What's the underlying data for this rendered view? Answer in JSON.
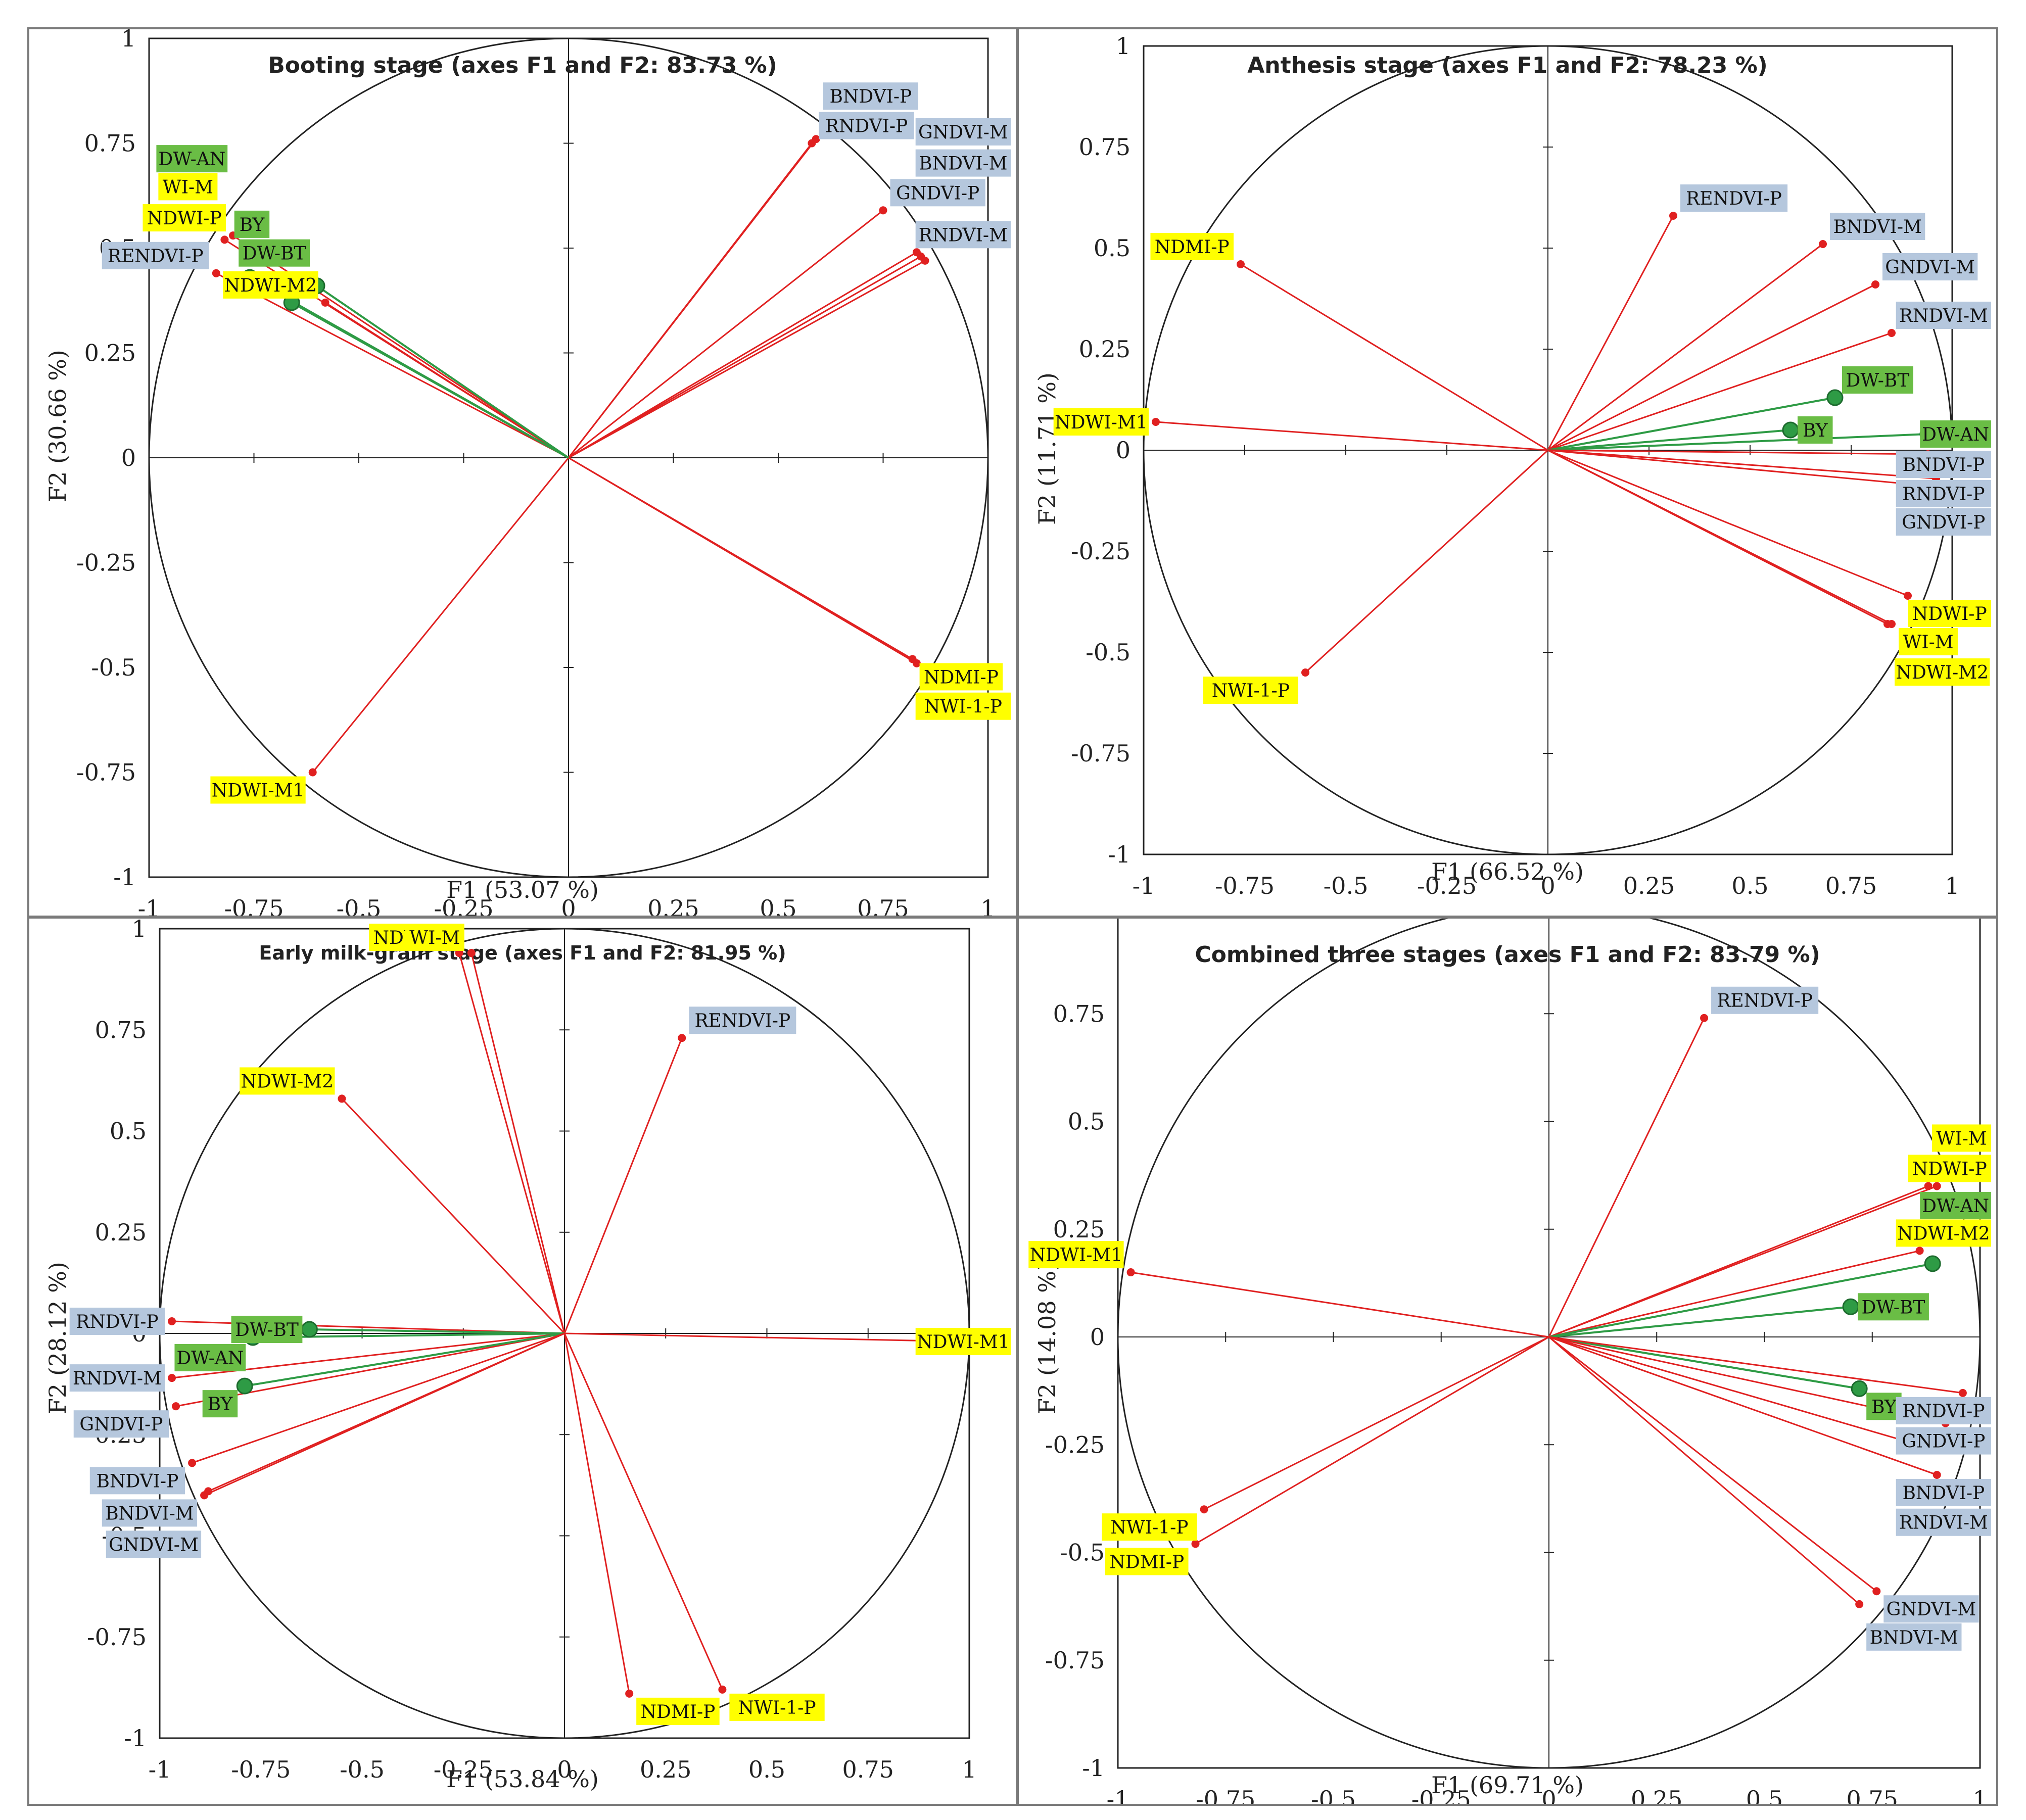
{
  "figure": {
    "colors": {
      "vector": "#e02020",
      "point": "#e02020",
      "dw_point": "#2e9b45",
      "circle": "#222222",
      "label_blue": "#b5c7dd",
      "label_yellow": "#ffff00",
      "label_green": "#6abd45"
    }
  },
  "chart_data": [
    {
      "type": "scatter",
      "title": "Booting stage (axes F1 and F2: 83.73 %)",
      "xlabel": "F1 (53.07 %)",
      "ylabel": "F2 (30.66 %)",
      "xlim": [
        -1,
        1
      ],
      "ylim": [
        -1,
        1
      ],
      "ticks": [
        "-1",
        "-0.75",
        "-0.5",
        "-0.25",
        "0",
        "0.25",
        "0.5",
        "0.75",
        "1"
      ],
      "points": [
        {
          "name": "RNDVI-P",
          "x": 0.58,
          "y": 0.75,
          "group": "blue"
        },
        {
          "name": "BNDVI-P",
          "x": 0.59,
          "y": 0.76,
          "group": "blue"
        },
        {
          "name": "GNDVI-P",
          "x": 0.75,
          "y": 0.59,
          "group": "blue"
        },
        {
          "name": "RNDVI-M",
          "x": 0.83,
          "y": 0.49,
          "group": "blue"
        },
        {
          "name": "BNDVI-M",
          "x": 0.84,
          "y": 0.48,
          "group": "blue"
        },
        {
          "name": "GNDVI-M",
          "x": 0.85,
          "y": 0.47,
          "group": "blue"
        },
        {
          "name": "NDMI-P",
          "x": 0.82,
          "y": -0.48,
          "group": "yellow"
        },
        {
          "name": "NWI-1-P",
          "x": 0.83,
          "y": -0.49,
          "group": "yellow"
        },
        {
          "name": "NDWI-M1",
          "x": -0.61,
          "y": -0.75,
          "group": "yellow"
        },
        {
          "name": "NDWI-P",
          "x": -0.8,
          "y": 0.53,
          "group": "yellow"
        },
        {
          "name": "WI-M",
          "x": -0.82,
          "y": 0.52,
          "group": "yellow"
        },
        {
          "name": "NDWI-M2",
          "x": -0.58,
          "y": 0.37,
          "group": "yellow"
        },
        {
          "name": "RENDVI-P",
          "x": -0.84,
          "y": 0.44,
          "group": "blue"
        },
        {
          "name": "DW-AN",
          "x": -0.76,
          "y": 0.43,
          "group": "green"
        },
        {
          "name": "DW-BT",
          "x": -0.6,
          "y": 0.41,
          "group": "green"
        },
        {
          "name": "BY",
          "x": -0.66,
          "y": 0.37,
          "group": "green"
        }
      ]
    },
    {
      "type": "scatter",
      "title": "Anthesis stage (axes F1 and F2: 78.23 %)",
      "xlabel": "F1 (66.52 %)",
      "ylabel": "F2 (11.71 %)",
      "xlim": [
        -1,
        1
      ],
      "ylim": [
        -1,
        1
      ],
      "ticks": [
        "-1",
        "-0.75",
        "-0.5",
        "-0.25",
        "0",
        "0.25",
        "0.5",
        "0.75",
        "1"
      ],
      "points": [
        {
          "name": "RENDVI-P",
          "x": 0.31,
          "y": 0.58,
          "group": "blue"
        },
        {
          "name": "BNDVI-M",
          "x": 0.68,
          "y": 0.51,
          "group": "blue"
        },
        {
          "name": "GNDVI-M",
          "x": 0.81,
          "y": 0.41,
          "group": "blue"
        },
        {
          "name": "RNDVI-M",
          "x": 0.85,
          "y": 0.29,
          "group": "blue"
        },
        {
          "name": "BY",
          "x": 0.6,
          "y": 0.05,
          "group": "green"
        },
        {
          "name": "DW-BT",
          "x": 0.71,
          "y": 0.13,
          "group": "green"
        },
        {
          "name": "DW-AN",
          "x": 0.94,
          "y": 0.04,
          "group": "green"
        },
        {
          "name": "BNDVI-P",
          "x": 0.94,
          "y": -0.01,
          "group": "blue"
        },
        {
          "name": "RNDVI-P",
          "x": 0.96,
          "y": -0.07,
          "group": "blue"
        },
        {
          "name": "GNDVI-P",
          "x": 0.96,
          "y": -0.09,
          "group": "blue"
        },
        {
          "name": "NDWI-P",
          "x": 0.89,
          "y": -0.36,
          "group": "yellow"
        },
        {
          "name": "WI-M",
          "x": 0.85,
          "y": -0.43,
          "group": "yellow"
        },
        {
          "name": "NDWI-M2",
          "x": 0.84,
          "y": -0.43,
          "group": "yellow"
        },
        {
          "name": "NDMI-P",
          "x": -0.76,
          "y": 0.46,
          "group": "yellow"
        },
        {
          "name": "NDWI-M1",
          "x": -0.97,
          "y": 0.07,
          "group": "yellow"
        },
        {
          "name": "NWI-1-P",
          "x": -0.6,
          "y": -0.55,
          "group": "yellow"
        }
      ]
    },
    {
      "type": "scatter",
      "title": "Early milk-grain stage (axes F1 and F2: 81.95  %)",
      "xlabel": "F1 (53.84 %)",
      "ylabel": "F2 (28.12 %)",
      "xlim": [
        -1,
        1
      ],
      "ylim": [
        -1,
        1
      ],
      "ticks": [
        "-1",
        "-0.75",
        "-0.5",
        "-0.25",
        "0",
        "0.25",
        "0.5",
        "0.75",
        "1"
      ],
      "points": [
        {
          "name": "NDWI-P",
          "x": -0.26,
          "y": 0.94,
          "group": "yellow"
        },
        {
          "name": "WI-M",
          "x": -0.23,
          "y": 0.94,
          "group": "yellow"
        },
        {
          "name": "RENDVI-P",
          "x": 0.29,
          "y": 0.73,
          "group": "blue"
        },
        {
          "name": "NDWI-M2",
          "x": -0.55,
          "y": 0.58,
          "group": "yellow"
        },
        {
          "name": "RNDVI-P",
          "x": -0.97,
          "y": 0.03,
          "group": "blue"
        },
        {
          "name": "DW-BT",
          "x": -0.63,
          "y": 0.01,
          "group": "green"
        },
        {
          "name": "RNDVI-M",
          "x": -0.97,
          "y": -0.11,
          "group": "blue"
        },
        {
          "name": "DW-AN",
          "x": -0.77,
          "y": -0.01,
          "group": "green"
        },
        {
          "name": "GNDVI-P",
          "x": -0.96,
          "y": -0.18,
          "group": "blue"
        },
        {
          "name": "BY",
          "x": -0.79,
          "y": -0.13,
          "group": "green"
        },
        {
          "name": "BNDVI-P",
          "x": -0.92,
          "y": -0.32,
          "group": "blue"
        },
        {
          "name": "BNDVI-M",
          "x": -0.89,
          "y": -0.4,
          "group": "blue"
        },
        {
          "name": "GNDVI-M",
          "x": -0.88,
          "y": -0.39,
          "group": "blue"
        },
        {
          "name": "NDWI-M1",
          "x": 0.98,
          "y": -0.02,
          "group": "yellow"
        },
        {
          "name": "NDMI-P",
          "x": 0.16,
          "y": -0.89,
          "group": "yellow"
        },
        {
          "name": "NWI-1-P",
          "x": 0.39,
          "y": -0.88,
          "group": "yellow"
        }
      ]
    },
    {
      "type": "scatter",
      "title": "Combined three stages (axes F1 and F2: 83.79 %)",
      "xlabel": "F1 (69.71 %)",
      "ylabel": "F2 (14.08 %)",
      "xlim": [
        -1,
        1
      ],
      "ylim": [
        -1,
        1
      ],
      "ticks": [
        "-1",
        "-0.75",
        "-0.5",
        "-0.25",
        "0",
        "0.25",
        "0.5",
        "0.75",
        "1"
      ],
      "points": [
        {
          "name": "RENDVI-P",
          "x": 0.36,
          "y": 0.74,
          "group": "blue"
        },
        {
          "name": "NDWI-P",
          "x": 0.88,
          "y": 0.35,
          "group": "yellow"
        },
        {
          "name": "WI-M",
          "x": 0.9,
          "y": 0.35,
          "group": "yellow"
        },
        {
          "name": "NDWI-M2",
          "x": 0.86,
          "y": 0.2,
          "group": "yellow"
        },
        {
          "name": "DW-AN",
          "x": 0.89,
          "y": 0.17,
          "group": "green"
        },
        {
          "name": "DW-BT",
          "x": 0.7,
          "y": 0.07,
          "group": "green"
        },
        {
          "name": "BY",
          "x": 0.72,
          "y": -0.12,
          "group": "green"
        },
        {
          "name": "RNDVI-P",
          "x": 0.96,
          "y": -0.13,
          "group": "blue"
        },
        {
          "name": "GNDVI-P",
          "x": 0.92,
          "y": -0.2,
          "group": "blue"
        },
        {
          "name": "BNDVI-P",
          "x": 0.9,
          "y": -0.32,
          "group": "blue"
        },
        {
          "name": "RNDVI-M",
          "x": 0.89,
          "y": -0.26,
          "group": "blue"
        },
        {
          "name": "GNDVI-M",
          "x": 0.76,
          "y": -0.59,
          "group": "blue"
        },
        {
          "name": "BNDVI-M",
          "x": 0.72,
          "y": -0.62,
          "group": "blue"
        },
        {
          "name": "NDWI-M1",
          "x": -0.97,
          "y": 0.15,
          "group": "yellow"
        },
        {
          "name": "NWI-1-P",
          "x": -0.8,
          "y": -0.4,
          "group": "yellow"
        },
        {
          "name": "NDMI-P",
          "x": -0.82,
          "y": -0.48,
          "group": "yellow"
        }
      ]
    }
  ]
}
